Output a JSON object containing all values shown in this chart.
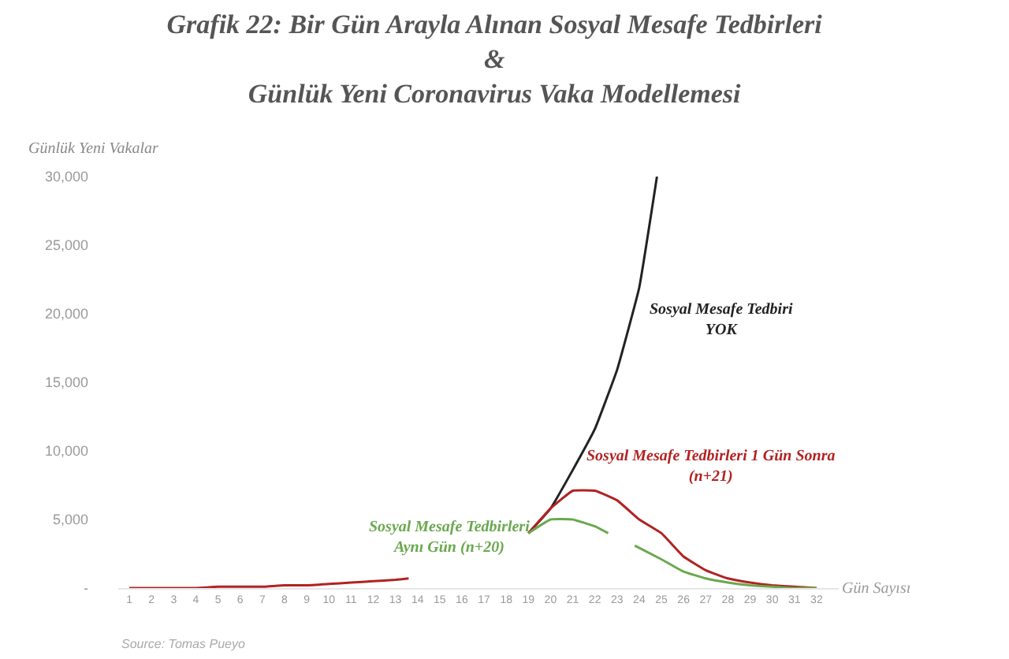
{
  "chart_data": {
    "type": "line",
    "title": "Grafik 22: Bir Gün Arayla Alınan Sosyal Mesafe Tedbirleri\n&\nGünlük Yeni Coronavirus Vaka Modellemesi",
    "xlabel": "Gün Sayısı",
    "ylabel": "Günlük Yeni Vakalar",
    "annotations": [
      "Source: Tomas Pueyo"
    ],
    "series": [
      {
        "name": "Sosyal Mesafe Tedbiri\nYOK",
        "color": "#222222",
        "x": [
          19,
          20,
          21,
          22,
          23,
          24,
          24.8
        ],
        "values": [
          4000,
          5800,
          8600,
          11600,
          15900,
          21900,
          30000
        ]
      },
      {
        "name": "Sosyal Mesafe Tedbirleri 1 Gün Sonra\n(n+21)",
        "color": "#b22222",
        "x": [
          1,
          2,
          3,
          4,
          5,
          6,
          7,
          8,
          9,
          10,
          11,
          12,
          13,
          13.6,
          16,
          19,
          20,
          21,
          22,
          23,
          24,
          25,
          26,
          27,
          28,
          29,
          30,
          31,
          32
        ],
        "values": [
          0,
          0,
          0,
          0,
          100,
          100,
          100,
          200,
          200,
          300,
          400,
          500,
          600,
          700,
          null,
          4000,
          5800,
          7100,
          7100,
          6400,
          5000,
          4000,
          2300,
          1300,
          700,
          400,
          200,
          100,
          0
        ]
      },
      {
        "name": "Sosyal Mesafe Tedbirleri\nAynı Gün (n+20)",
        "color": "#6aa84f",
        "x": [
          19,
          20,
          21,
          22,
          22.6,
          23.2,
          23.8,
          25,
          26,
          27,
          28,
          29,
          30,
          31,
          32
        ],
        "values": [
          4000,
          5000,
          5000,
          4500,
          4000,
          null,
          3100,
          2100,
          1200,
          700,
          400,
          200,
          100,
          0,
          0
        ]
      }
    ],
    "xlim": [
      0.5,
      33
    ],
    "xticks": [
      1,
      2,
      3,
      4,
      5,
      6,
      7,
      8,
      9,
      10,
      11,
      12,
      13,
      14,
      15,
      16,
      17,
      18,
      19,
      20,
      21,
      22,
      23,
      24,
      25,
      26,
      27,
      28,
      29,
      30,
      31,
      32
    ],
    "ylim": [
      0,
      30000
    ],
    "yticks": [
      {
        "value": 0,
        "label": "-"
      },
      {
        "value": 5000,
        "label": "5,000"
      },
      {
        "value": 10000,
        "label": "10,000"
      },
      {
        "value": 15000,
        "label": "15,000"
      },
      {
        "value": 20000,
        "label": "20,000"
      },
      {
        "value": 25000,
        "label": "25,000"
      },
      {
        "value": 30000,
        "label": "30,000"
      }
    ],
    "legend": false,
    "marker": "none",
    "line_style": "solid"
  }
}
